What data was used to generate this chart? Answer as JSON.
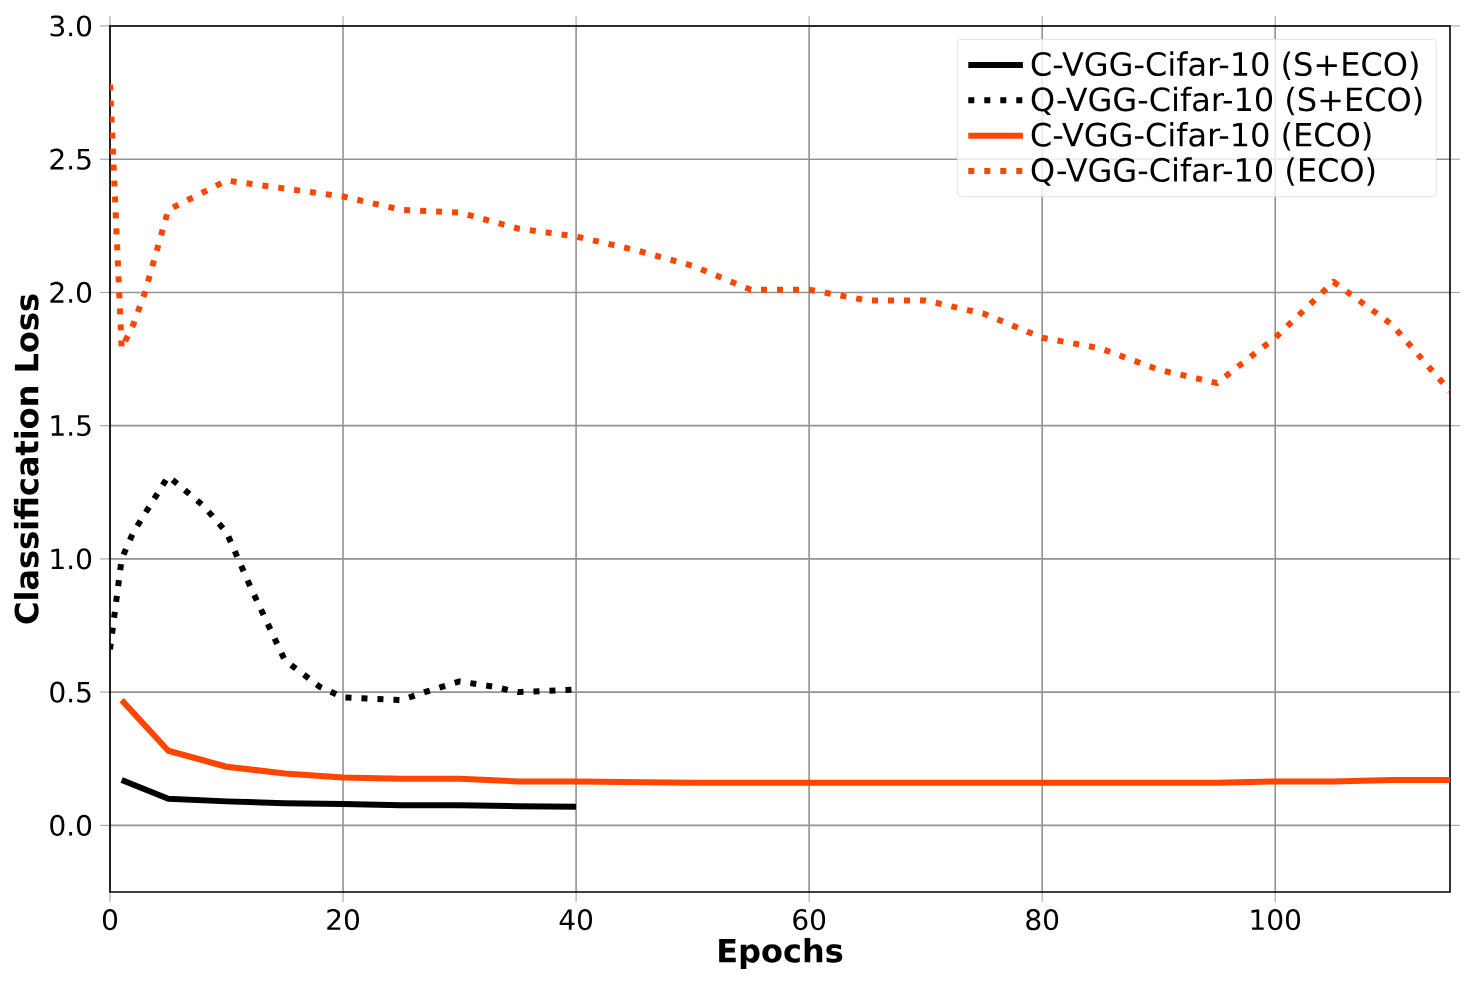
{
  "chart_data": {
    "type": "line",
    "xlabel": "Epochs",
    "ylabel": "Classification Loss",
    "xlim": [
      0,
      115
    ],
    "ylim": [
      -0.25,
      3.0
    ],
    "xticks": [
      0,
      20,
      40,
      60,
      80,
      100
    ],
    "yticks": [
      {
        "value": 0,
        "label": "0.0"
      },
      0.5,
      {
        "value": 1,
        "label": "1.0"
      },
      1.5,
      {
        "value": 2,
        "label": "2.0"
      },
      2.5,
      {
        "value": 3,
        "label": "3.0"
      }
    ],
    "grid": true,
    "legend": "top right",
    "marker": "none",
    "series": [
      {
        "name": "C-VGG-Cifar-10 (S+ECO)",
        "color": "#000000",
        "line_style": "solid",
        "x": [
          1,
          5,
          10,
          15,
          20,
          25,
          30,
          35,
          40
        ],
        "values": [
          0.17,
          0.1,
          0.09,
          0.083,
          0.08,
          0.075,
          0.075,
          0.072,
          0.07
        ]
      },
      {
        "name": "Q-VGG-Cifar-10 (S+ECO)",
        "color": "#000000",
        "line_style": "dotted",
        "x": [
          0,
          1,
          2,
          5,
          8,
          10,
          12,
          15,
          18,
          20,
          25,
          27,
          30,
          33,
          35,
          40
        ],
        "values": [
          0.66,
          1.0,
          1.1,
          1.31,
          1.2,
          1.1,
          0.9,
          0.62,
          0.52,
          0.48,
          0.47,
          0.5,
          0.54,
          0.52,
          0.5,
          0.51
        ]
      },
      {
        "name": "C-VGG-Cifar-10 (ECO)",
        "color": "#ff4500",
        "line_style": "solid",
        "x": [
          1,
          5,
          10,
          15,
          20,
          25,
          30,
          35,
          40,
          50,
          60,
          70,
          80,
          90,
          95,
          100,
          105,
          110,
          115
        ],
        "values": [
          0.47,
          0.28,
          0.22,
          0.195,
          0.18,
          0.175,
          0.175,
          0.165,
          0.165,
          0.16,
          0.16,
          0.16,
          0.16,
          0.16,
          0.16,
          0.165,
          0.165,
          0.17,
          0.17
        ]
      },
      {
        "name": "Q-VGG-Cifar-10 (ECO)",
        "color": "#ff4500",
        "line_style": "dotted",
        "x": [
          0,
          1,
          2,
          3,
          5,
          10,
          15,
          20,
          25,
          30,
          35,
          40,
          45,
          50,
          55,
          60,
          65,
          70,
          75,
          80,
          85,
          90,
          95,
          100,
          105,
          110,
          115
        ],
        "values": [
          2.78,
          1.79,
          1.88,
          2.0,
          2.31,
          2.42,
          2.39,
          2.36,
          2.31,
          2.3,
          2.24,
          2.21,
          2.16,
          2.1,
          2.01,
          2.01,
          1.97,
          1.97,
          1.92,
          1.83,
          1.79,
          1.71,
          1.66,
          1.83,
          2.04,
          1.88,
          1.63
        ]
      }
    ]
  }
}
